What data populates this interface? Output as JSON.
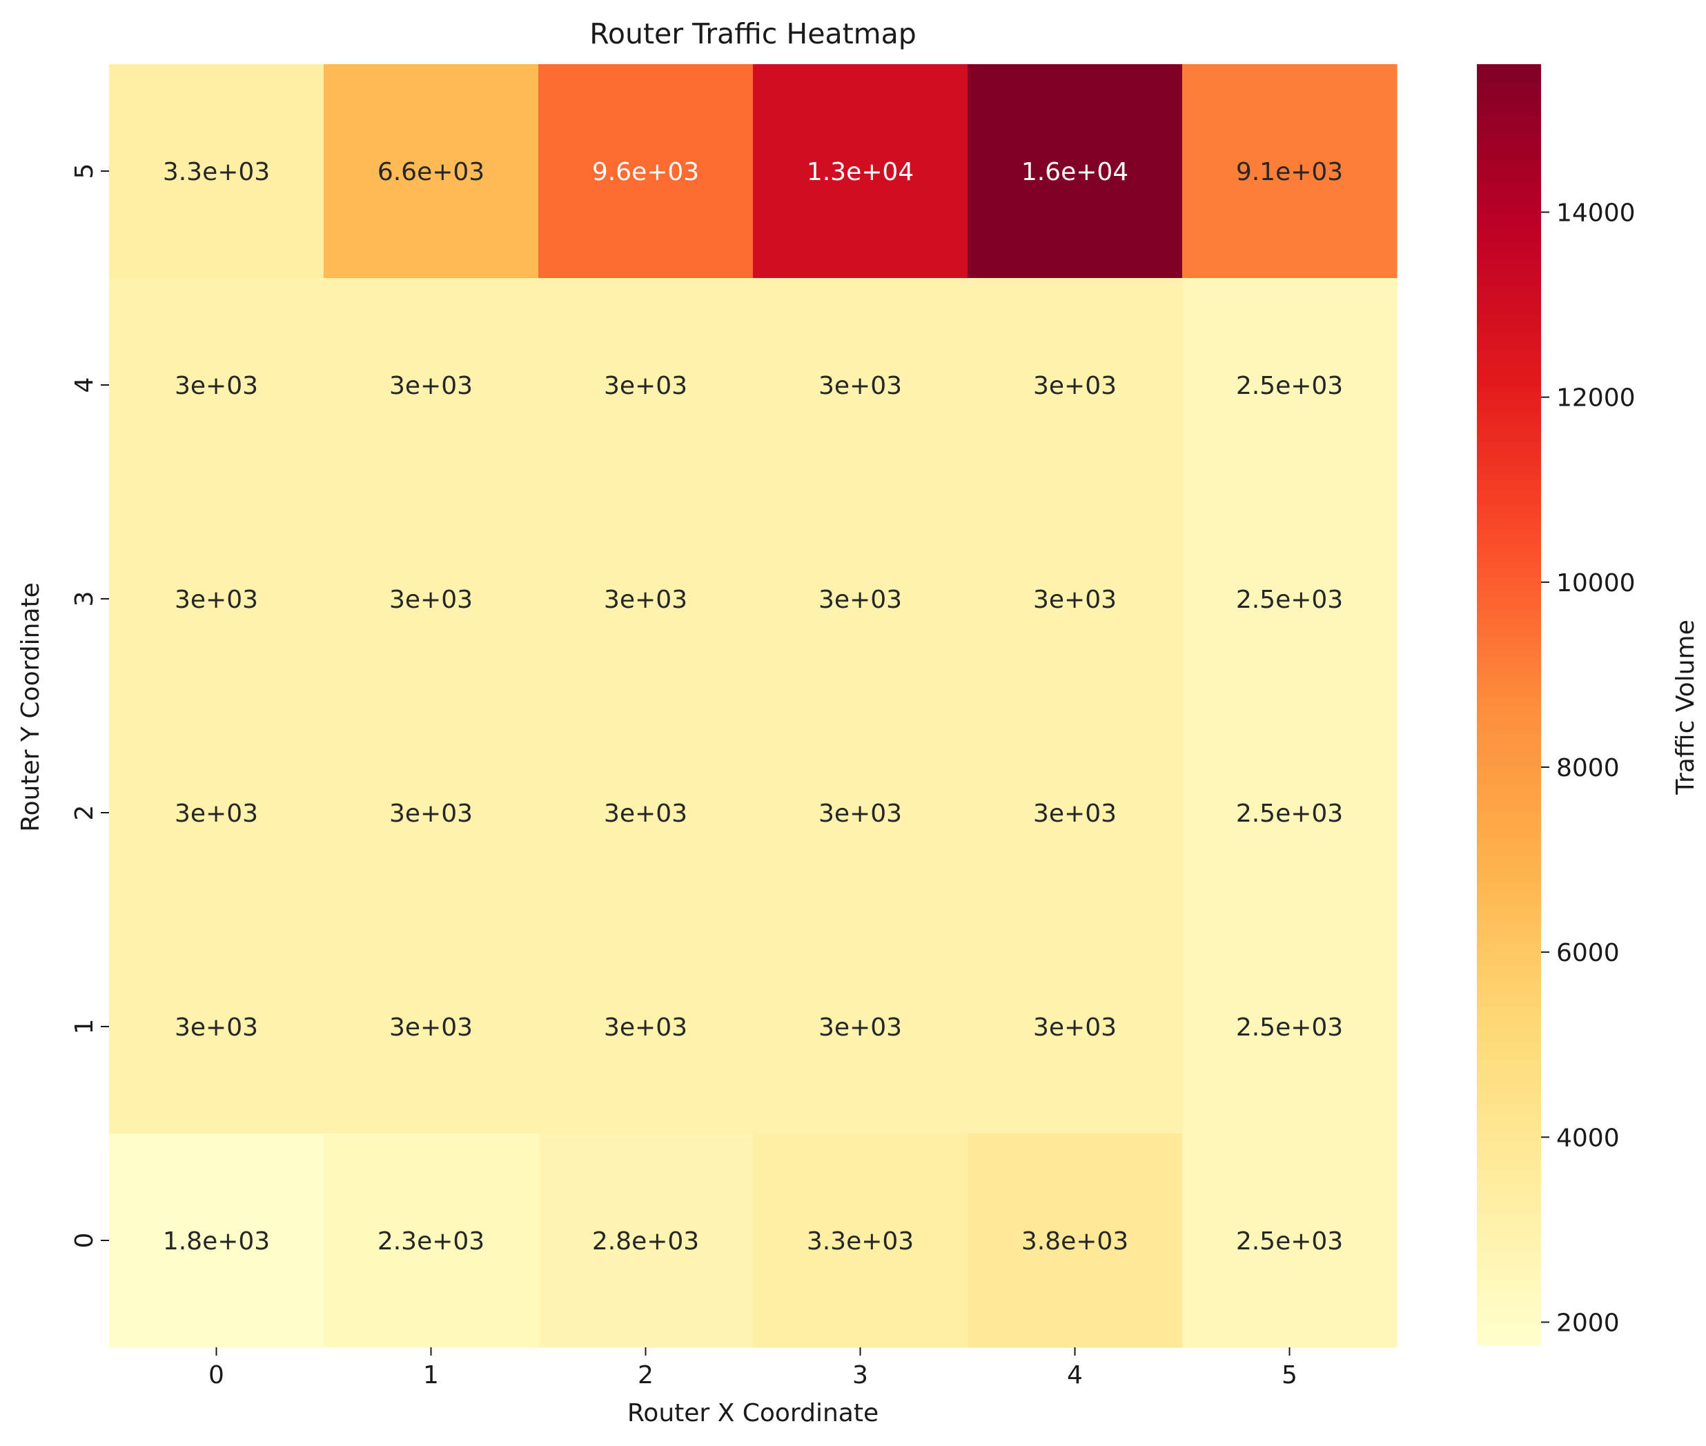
{
  "chart_data": {
    "type": "heatmap",
    "title": "Router Traffic Heatmap",
    "xlabel": "Router X Coordinate",
    "ylabel": "Router Y Coordinate",
    "colorbar_label": "Traffic Volume",
    "x_categories": [
      "0",
      "1",
      "2",
      "3",
      "4",
      "5"
    ],
    "y_categories": [
      "5",
      "4",
      "3",
      "2",
      "1",
      "0"
    ],
    "values": [
      [
        3300,
        6600,
        9600,
        13000,
        15600,
        9100
      ],
      [
        3000,
        3000,
        3000,
        3000,
        3000,
        2500
      ],
      [
        3000,
        3000,
        3000,
        3000,
        3000,
        2500
      ],
      [
        3000,
        3000,
        3000,
        3000,
        3000,
        2500
      ],
      [
        3000,
        3000,
        3000,
        3000,
        3000,
        2500
      ],
      [
        1800,
        2300,
        2800,
        3300,
        3800,
        2500
      ]
    ],
    "annotations": [
      [
        "3.3e+03",
        "6.6e+03",
        "9.6e+03",
        "1.3e+04",
        "1.6e+04",
        "9.1e+03"
      ],
      [
        "3e+03",
        "3e+03",
        "3e+03",
        "3e+03",
        "3e+03",
        "2.5e+03"
      ],
      [
        "3e+03",
        "3e+03",
        "3e+03",
        "3e+03",
        "3e+03",
        "2.5e+03"
      ],
      [
        "3e+03",
        "3e+03",
        "3e+03",
        "3e+03",
        "3e+03",
        "2.5e+03"
      ],
      [
        "3e+03",
        "3e+03",
        "3e+03",
        "3e+03",
        "3e+03",
        "2.5e+03"
      ],
      [
        "1.8e+03",
        "2.3e+03",
        "2.8e+03",
        "3.3e+03",
        "3.8e+03",
        "2.5e+03"
      ]
    ],
    "color_range": [
      1750,
      15600
    ],
    "colorbar_ticks": [
      2000,
      4000,
      6000,
      8000,
      10000,
      12000,
      14000
    ],
    "colorbar_tick_labels": [
      "2000",
      "4000",
      "6000",
      "8000",
      "10000",
      "12000",
      "14000"
    ],
    "colormap": "YlOrRd",
    "colormap_stops": [
      "#ffffcc",
      "#ffeda0",
      "#fed976",
      "#feb24c",
      "#fd8d3c",
      "#fc4e2a",
      "#e31a1c",
      "#bd0026",
      "#800026"
    ],
    "grid": false,
    "legend": "colorbar-right"
  }
}
